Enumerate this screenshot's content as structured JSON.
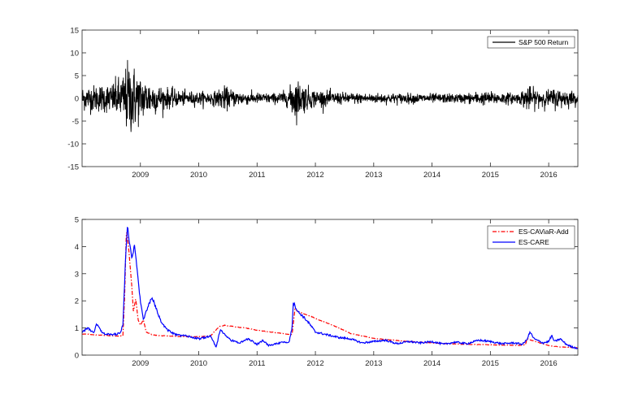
{
  "chart_data": [
    {
      "type": "line",
      "x_ticks": [
        "2009",
        "2010",
        "2011",
        "2012",
        "2013",
        "2014",
        "2015",
        "2016"
      ],
      "x_tick_positions": [
        2009.0,
        2010.0,
        2011.0,
        2012.0,
        2013.0,
        2014.0,
        2015.0,
        2016.0
      ],
      "xlim": [
        2008.0,
        2016.5
      ],
      "ylim": [
        -15,
        15
      ],
      "y_ticks": [
        -15,
        -10,
        -5,
        0,
        5,
        10,
        15
      ],
      "legend_position": "top-right",
      "series": [
        {
          "name": "S&P 500 Return",
          "color": "#000000",
          "style": "solid",
          "volatility_profile": {
            "x": [
              2008.0,
              2008.5,
              2008.7,
              2008.8,
              2008.9,
              2009.0,
              2009.2,
              2009.4,
              2009.7,
              2010.0,
              2010.3,
              2010.4,
              2010.6,
              2010.9,
              2011.3,
              2011.55,
              2011.62,
              2011.75,
              2011.95,
              2012.3,
              2012.5,
              2013.0,
              2013.5,
              2014.0,
              2014.5,
              2014.8,
              2015.0,
              2015.5,
              2015.62,
              2015.75,
              2016.0,
              2016.1,
              2016.5
            ],
            "sd": [
              1.3,
              1.6,
              2.6,
              4.2,
              3.4,
              2.4,
              1.8,
              1.2,
              0.8,
              0.7,
              0.75,
              1.3,
              0.9,
              0.6,
              0.55,
              0.9,
              2.4,
              1.7,
              1.0,
              0.7,
              0.6,
              0.55,
              0.55,
              0.5,
              0.5,
              0.7,
              0.7,
              0.55,
              1.4,
              1.0,
              0.9,
              1.1,
              0.7
            ]
          }
        }
      ]
    },
    {
      "type": "line",
      "x_ticks": [
        "2009",
        "2010",
        "2011",
        "2012",
        "2013",
        "2014",
        "2015",
        "2016"
      ],
      "x_tick_positions": [
        2009.0,
        2010.0,
        2011.0,
        2012.0,
        2013.0,
        2014.0,
        2015.0,
        2016.0
      ],
      "xlim": [
        2008.0,
        2016.5
      ],
      "ylim": [
        0,
        5
      ],
      "y_ticks": [
        0,
        1,
        2,
        3,
        4,
        5
      ],
      "legend_position": "top-right",
      "series": [
        {
          "name": "ES-CAViaR-Add",
          "color": "#ff0000",
          "style": "dash-dot",
          "x": [
            2008.0,
            2008.3,
            2008.6,
            2008.7,
            2008.73,
            2008.76,
            2008.8,
            2008.85,
            2008.88,
            2008.92,
            2008.96,
            2009.0,
            2009.05,
            2009.1,
            2009.2,
            2009.3,
            2009.5,
            2009.8,
            2010.0,
            2010.2,
            2010.35,
            2010.45,
            2010.6,
            2010.8,
            2011.0,
            2011.2,
            2011.5,
            2011.6,
            2011.65,
            2011.7,
            2011.9,
            2012.0,
            2012.3,
            2012.6,
            2013.0,
            2013.5,
            2014.0,
            2014.5,
            2015.0,
            2015.5,
            2015.6,
            2015.63,
            2015.7,
            2015.9,
            2016.0,
            2016.2,
            2016.5
          ],
          "y": [
            0.78,
            0.74,
            0.7,
            0.72,
            2.2,
            4.65,
            3.9,
            2.6,
            1.6,
            2.1,
            1.3,
            1.1,
            1.3,
            0.85,
            0.75,
            0.72,
            0.7,
            0.68,
            0.68,
            0.7,
            1.05,
            1.1,
            1.05,
            1.0,
            0.92,
            0.86,
            0.78,
            0.76,
            1.7,
            1.6,
            1.45,
            1.35,
            1.1,
            0.8,
            0.62,
            0.52,
            0.45,
            0.4,
            0.38,
            0.36,
            0.38,
            0.6,
            0.55,
            0.42,
            0.35,
            0.3,
            0.27
          ]
        },
        {
          "name": "ES-CARE",
          "color": "#0000ff",
          "style": "solid",
          "x": [
            2008.0,
            2008.1,
            2008.2,
            2008.25,
            2008.35,
            2008.5,
            2008.65,
            2008.7,
            2008.75,
            2008.78,
            2008.8,
            2008.85,
            2008.9,
            2008.95,
            2009.0,
            2009.05,
            2009.1,
            2009.15,
            2009.2,
            2009.25,
            2009.35,
            2009.45,
            2009.6,
            2009.8,
            2010.0,
            2010.2,
            2010.3,
            2010.37,
            2010.45,
            2010.55,
            2010.7,
            2010.85,
            2011.0,
            2011.1,
            2011.2,
            2011.4,
            2011.55,
            2011.6,
            2011.62,
            2011.7,
            2011.8,
            2011.9,
            2012.0,
            2012.2,
            2012.4,
            2012.6,
            2012.8,
            2013.0,
            2013.2,
            2013.4,
            2013.6,
            2013.8,
            2014.0,
            2014.2,
            2014.4,
            2014.6,
            2014.8,
            2015.0,
            2015.2,
            2015.4,
            2015.55,
            2015.62,
            2015.68,
            2015.75,
            2015.9,
            2016.0,
            2016.05,
            2016.1,
            2016.2,
            2016.3,
            2016.4,
            2016.5
          ],
          "y": [
            0.85,
            1.0,
            0.8,
            1.15,
            0.8,
            0.75,
            0.8,
            1.1,
            3.8,
            4.9,
            4.4,
            3.6,
            4.0,
            3.0,
            2.0,
            1.3,
            1.6,
            1.9,
            2.1,
            1.85,
            1.25,
            0.95,
            0.75,
            0.7,
            0.6,
            0.7,
            0.3,
            0.95,
            0.75,
            0.55,
            0.45,
            0.6,
            0.4,
            0.55,
            0.35,
            0.45,
            0.5,
            1.0,
            1.95,
            1.6,
            1.4,
            1.15,
            0.85,
            0.75,
            0.65,
            0.6,
            0.45,
            0.5,
            0.55,
            0.42,
            0.5,
            0.45,
            0.5,
            0.4,
            0.48,
            0.42,
            0.55,
            0.5,
            0.42,
            0.45,
            0.4,
            0.55,
            0.85,
            0.6,
            0.45,
            0.5,
            0.72,
            0.5,
            0.6,
            0.4,
            0.3,
            0.25
          ]
        }
      ]
    }
  ]
}
